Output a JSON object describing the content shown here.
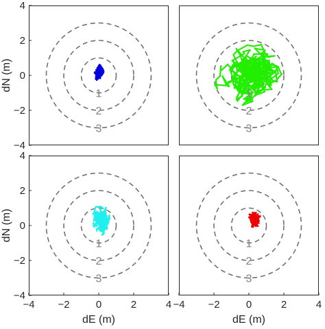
{
  "chart_data": [
    {
      "type": "line",
      "panel": "top-left",
      "xlim": [
        -4,
        4
      ],
      "ylim": [
        -4,
        4
      ],
      "xlabel": "",
      "ylabel": "dN (m)",
      "xticks": [],
      "yticks": [
        -4,
        -2,
        0,
        2,
        4
      ],
      "grid": false,
      "rings": [
        {
          "radius": 1,
          "label": "1"
        },
        {
          "radius": 2,
          "label": "2"
        },
        {
          "radius": 3,
          "label": "3"
        }
      ],
      "series": [
        {
          "color": "#0000dd",
          "center": [
            0,
            0.2
          ],
          "spread": [
            0.38,
            0.6
          ],
          "steps": 340,
          "seed": 11
        }
      ]
    },
    {
      "type": "line",
      "panel": "top-right",
      "xlim": [
        -4,
        4
      ],
      "ylim": [
        -4,
        4
      ],
      "xlabel": "",
      "ylabel": "",
      "xticks": [],
      "yticks": [],
      "grid": false,
      "rings": [
        {
          "radius": 1,
          "label": "1"
        },
        {
          "radius": 2,
          "label": "2"
        },
        {
          "radius": 3,
          "label": "3"
        }
      ],
      "series": [
        {
          "color": "#22ee00",
          "center": [
            0.1,
            0.2
          ],
          "spread": [
            2.6,
            2.4
          ],
          "steps": 420,
          "seed": 29
        }
      ]
    },
    {
      "type": "line",
      "panel": "bottom-left",
      "xlim": [
        -4,
        4
      ],
      "ylim": [
        -4,
        4
      ],
      "xlabel": "dE (m)",
      "ylabel": "dN (m)",
      "xticks": [
        -4,
        -2,
        0,
        2,
        4
      ],
      "yticks": [
        -4,
        -2,
        0,
        2,
        4
      ],
      "grid": false,
      "rings": [
        {
          "radius": 1,
          "label": "1"
        },
        {
          "radius": 2,
          "label": "2"
        },
        {
          "radius": 3,
          "label": "3"
        }
      ],
      "series": [
        {
          "color": "#22eeee",
          "center": [
            0.15,
            0.4
          ],
          "spread": [
            0.7,
            1.1
          ],
          "steps": 340,
          "seed": 47
        }
      ]
    },
    {
      "type": "line",
      "panel": "bottom-right",
      "xlim": [
        -4,
        4
      ],
      "ylim": [
        -4,
        4
      ],
      "xlabel": "dE (m)",
      "ylabel": "",
      "xticks": [
        -4,
        -2,
        0,
        2,
        4
      ],
      "yticks": [],
      "grid": false,
      "rings": [
        {
          "radius": 1,
          "label": "1"
        },
        {
          "radius": 2,
          "label": "2"
        },
        {
          "radius": 3,
          "label": "3"
        }
      ],
      "series": [
        {
          "color": "#ee0000",
          "center": [
            0.3,
            0.4
          ],
          "spread": [
            0.5,
            0.65
          ],
          "steps": 340,
          "seed": 73
        }
      ]
    }
  ]
}
